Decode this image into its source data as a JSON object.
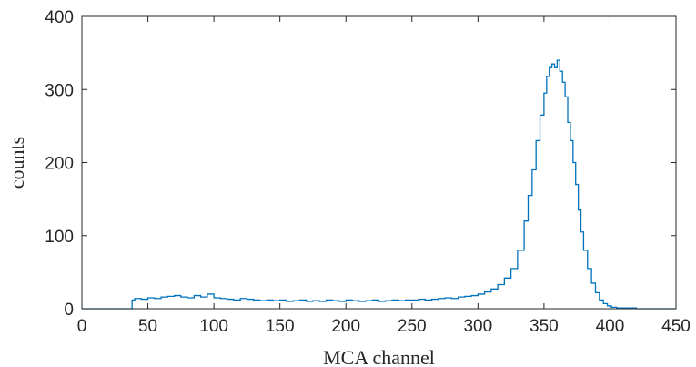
{
  "chart_data": {
    "type": "line",
    "subtype": "stairs-histogram",
    "title": "",
    "xlabel": "MCA channel",
    "ylabel": "counts",
    "xlim": [
      0,
      450
    ],
    "ylim": [
      0,
      400
    ],
    "xticks": [
      0,
      50,
      100,
      150,
      200,
      250,
      300,
      350,
      400,
      450
    ],
    "yticks": [
      0,
      100,
      200,
      300,
      400
    ],
    "grid": false,
    "box": true,
    "colors": {
      "series": "#0072bd",
      "axes": "#262626",
      "background": "#ffffff"
    },
    "series": [
      {
        "x": [
          0,
          5,
          10,
          15,
          20,
          25,
          30,
          35,
          38,
          40,
          45,
          50,
          55,
          60,
          65,
          70,
          75,
          80,
          85,
          90,
          95,
          100,
          105,
          110,
          115,
          120,
          125,
          130,
          135,
          140,
          145,
          150,
          155,
          160,
          165,
          170,
          175,
          180,
          185,
          190,
          195,
          200,
          205,
          210,
          215,
          220,
          225,
          230,
          235,
          240,
          245,
          250,
          255,
          260,
          265,
          270,
          275,
          280,
          285,
          290,
          295,
          300,
          305,
          310,
          315,
          320,
          325,
          330,
          335,
          338,
          341,
          344,
          347,
          350,
          352,
          354,
          356,
          358,
          360,
          362,
          364,
          366,
          368,
          370,
          372,
          374,
          376,
          378,
          380,
          383,
          386,
          389,
          392,
          395,
          398,
          401,
          405,
          410,
          415,
          420,
          425,
          430,
          435,
          440,
          445,
          450
        ],
        "y": [
          0,
          0,
          0,
          0,
          0,
          0,
          0,
          0,
          12,
          14,
          13,
          15,
          14,
          16,
          17,
          18,
          16,
          15,
          18,
          16,
          20,
          15,
          14,
          13,
          12,
          14,
          13,
          12,
          11,
          12,
          11,
          12,
          10,
          11,
          12,
          10,
          11,
          10,
          12,
          11,
          10,
          12,
          11,
          10,
          11,
          12,
          10,
          11,
          12,
          11,
          12,
          12,
          13,
          12,
          13,
          14,
          15,
          14,
          16,
          17,
          18,
          20,
          23,
          27,
          33,
          42,
          55,
          80,
          120,
          155,
          190,
          230,
          265,
          295,
          318,
          330,
          335,
          330,
          340,
          325,
          310,
          290,
          255,
          230,
          200,
          170,
          135,
          105,
          80,
          55,
          35,
          22,
          12,
          7,
          4,
          2,
          1,
          1,
          1,
          0,
          0,
          0,
          0,
          0,
          0,
          0
        ]
      }
    ]
  }
}
